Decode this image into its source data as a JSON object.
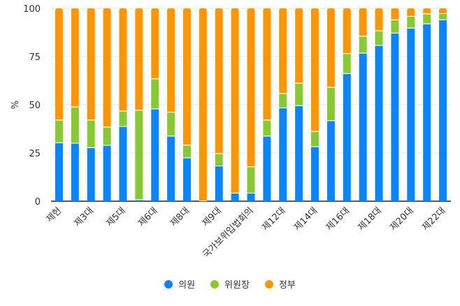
{
  "chart_data": {
    "type": "bar",
    "stacked": true,
    "ylabel": "%",
    "ylim": [
      0,
      100
    ],
    "yticks": [
      "0",
      "25",
      "50",
      "75",
      "100"
    ],
    "grid": true,
    "legend_placement": "bottom",
    "categories": [
      "제헌",
      "",
      "제3대",
      "",
      "제5대",
      "",
      "제6대",
      "",
      "제8대",
      "",
      "제9대",
      "",
      "국가보위입법회의",
      "",
      "제12대",
      "",
      "제14대",
      "",
      "제16대",
      "",
      "제18대",
      "",
      "제20대",
      "",
      "제22대"
    ],
    "series": [
      {
        "name": "의원",
        "color": "#0a84ff",
        "values": [
          30.1,
          29.9,
          27.6,
          28.8,
          38.6,
          0.6,
          47.7,
          33.6,
          22.3,
          0,
          18.1,
          4,
          4,
          33.6,
          48.2,
          49.4,
          28.1,
          41.6,
          66,
          76.6,
          80.6,
          87,
          89.6,
          91.8,
          93.9
        ]
      },
      {
        "name": "위원장",
        "color": "#88c833",
        "values": [
          11.8,
          18.8,
          14.3,
          9.5,
          8,
          46.4,
          15.6,
          12.4,
          6.6,
          0,
          6.4,
          0,
          13.7,
          8.3,
          7.5,
          11.6,
          7.9,
          17.3,
          10.4,
          8.8,
          7.6,
          6.9,
          6.1,
          5.2,
          3.2
        ]
      },
      {
        "name": "정부",
        "color": "#ff9500",
        "values": [
          58.1,
          51.3,
          58.1,
          61.7,
          53.4,
          53,
          36.7,
          54,
          71.1,
          100,
          75.5,
          96,
          82.3,
          58.1,
          44.3,
          39,
          64,
          41.1,
          23.6,
          14.6,
          11.8,
          6.1,
          4.3,
          3,
          2.9
        ]
      }
    ]
  }
}
